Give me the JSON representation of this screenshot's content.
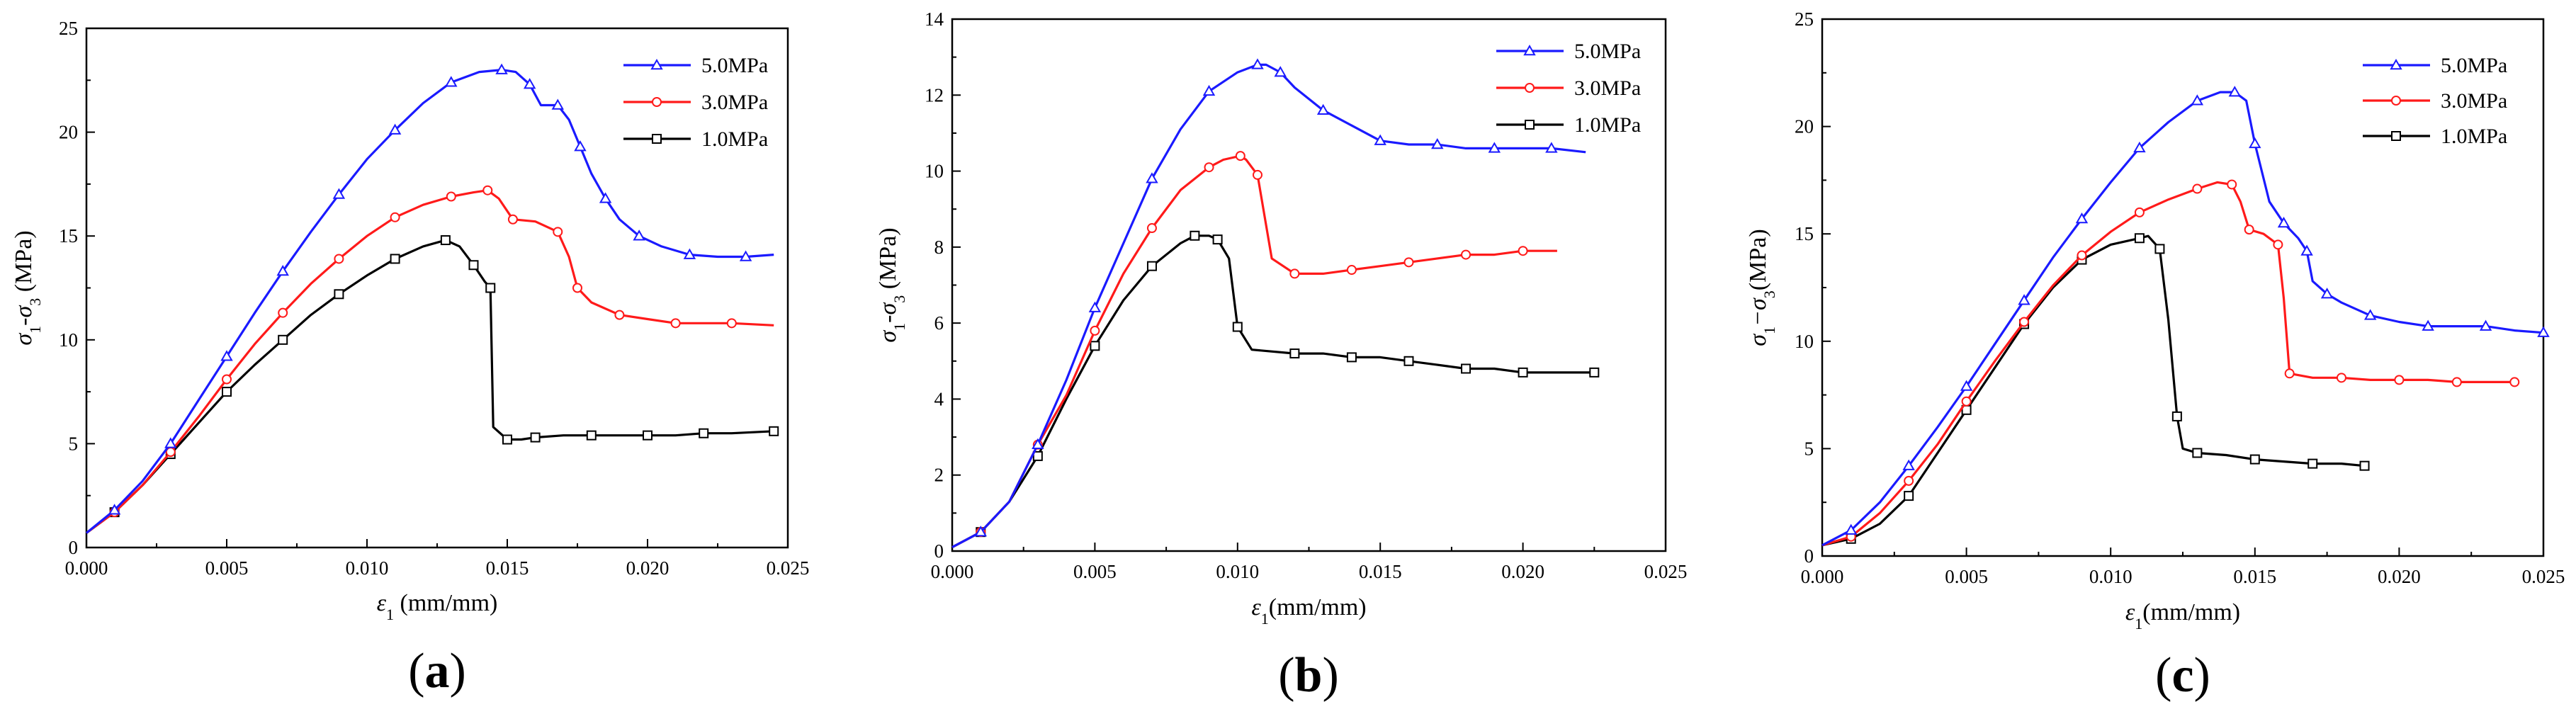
{
  "chart_data": [
    {
      "id": "a",
      "type": "line",
      "panel_label": "a",
      "xlabel_sym": "ε",
      "xlabel_sub": "1",
      "xlabel_tail": " (mm/mm)",
      "ylabel_parts": [
        "σ",
        "1",
        "-σ",
        "3",
        " (MPa)"
      ],
      "xlim": [
        0,
        0.025
      ],
      "ylim": [
        0,
        25
      ],
      "xticks": [
        0,
        0.005,
        0.01,
        0.015,
        0.02,
        0.025
      ],
      "xtick_labels": [
        "0.000",
        "0.005",
        "0.010",
        "0.015",
        "0.020",
        "0.025"
      ],
      "yticks": [
        0,
        5,
        10,
        15,
        20,
        25
      ],
      "ytick_labels": [
        "0",
        "5",
        "10",
        "15",
        "20",
        "25"
      ],
      "legend_position": "top-right",
      "series": [
        {
          "name": "5.0MPa",
          "color": "#1a1aff",
          "marker": "triangle",
          "x": [
            0,
            0.001,
            0.002,
            0.003,
            0.004,
            0.005,
            0.006,
            0.007,
            0.008,
            0.009,
            0.01,
            0.011,
            0.012,
            0.013,
            0.014,
            0.0148,
            0.0153,
            0.0158,
            0.0162,
            0.0168,
            0.0172,
            0.0176,
            0.018,
            0.0185,
            0.019,
            0.0197,
            0.0205,
            0.0215,
            0.0225,
            0.0235,
            0.0245
          ],
          "y": [
            0.7,
            1.8,
            3.2,
            5.0,
            7.1,
            9.2,
            11.3,
            13.3,
            15.2,
            17.0,
            18.7,
            20.1,
            21.4,
            22.4,
            22.9,
            23.0,
            22.9,
            22.3,
            21.3,
            21.3,
            20.6,
            19.3,
            18.0,
            16.8,
            15.8,
            15.0,
            14.5,
            14.1,
            14.0,
            14.0,
            14.1
          ]
        },
        {
          "name": "3.0MPa",
          "color": "#ff1a1a",
          "marker": "circle",
          "x": [
            0,
            0.001,
            0.002,
            0.003,
            0.004,
            0.005,
            0.006,
            0.007,
            0.008,
            0.009,
            0.01,
            0.011,
            0.012,
            0.013,
            0.0138,
            0.0143,
            0.0147,
            0.0152,
            0.016,
            0.0168,
            0.0172,
            0.0175,
            0.018,
            0.019,
            0.02,
            0.021,
            0.022,
            0.023,
            0.0245
          ],
          "y": [
            0.7,
            1.7,
            3.0,
            4.6,
            6.3,
            8.1,
            9.8,
            11.3,
            12.7,
            13.9,
            15.0,
            15.9,
            16.5,
            16.9,
            17.1,
            17.2,
            16.8,
            15.8,
            15.7,
            15.2,
            14.0,
            12.5,
            11.8,
            11.2,
            11.0,
            10.8,
            10.8,
            10.8,
            10.7
          ]
        },
        {
          "name": "1.0MPa",
          "color": "#000000",
          "marker": "square",
          "x": [
            0,
            0.001,
            0.002,
            0.003,
            0.004,
            0.005,
            0.006,
            0.007,
            0.008,
            0.009,
            0.01,
            0.011,
            0.012,
            0.0128,
            0.0133,
            0.0138,
            0.0142,
            0.0144,
            0.0145,
            0.015,
            0.0155,
            0.016,
            0.017,
            0.018,
            0.019,
            0.02,
            0.021,
            0.022,
            0.023,
            0.0245
          ],
          "y": [
            0.7,
            1.7,
            3.0,
            4.5,
            6.0,
            7.5,
            8.8,
            10.0,
            11.2,
            12.2,
            13.1,
            13.9,
            14.5,
            14.8,
            14.5,
            13.6,
            12.8,
            12.5,
            5.8,
            5.2,
            5.2,
            5.3,
            5.4,
            5.4,
            5.4,
            5.4,
            5.4,
            5.5,
            5.5,
            5.6
          ]
        }
      ]
    },
    {
      "id": "b",
      "type": "line",
      "panel_label": "b",
      "xlabel_sym": "ε",
      "xlabel_sub": "1",
      "xlabel_tail": "(mm/mm)",
      "ylabel_parts": [
        "σ",
        "1",
        "-σ",
        "3",
        " (MPa)"
      ],
      "xlim": [
        0,
        0.025
      ],
      "ylim": [
        0,
        14
      ],
      "xticks": [
        0,
        0.005,
        0.01,
        0.015,
        0.02,
        0.025
      ],
      "xtick_labels": [
        "0.000",
        "0.005",
        "0.010",
        "0.015",
        "0.020",
        "0.025"
      ],
      "yticks": [
        0,
        2,
        4,
        6,
        8,
        10,
        12,
        14
      ],
      "ytick_labels": [
        "0",
        "2",
        "4",
        "6",
        "8",
        "10",
        "12",
        "14"
      ],
      "legend_position": "top-right",
      "series": [
        {
          "name": "5.0MPa",
          "color": "#1a1aff",
          "marker": "triangle",
          "x": [
            0,
            0.001,
            0.002,
            0.003,
            0.004,
            0.005,
            0.006,
            0.007,
            0.008,
            0.009,
            0.01,
            0.0107,
            0.011,
            0.0115,
            0.012,
            0.013,
            0.014,
            0.015,
            0.016,
            0.017,
            0.018,
            0.019,
            0.02,
            0.021,
            0.0222
          ],
          "y": [
            0.1,
            0.5,
            1.3,
            2.8,
            4.5,
            6.4,
            8.1,
            9.8,
            11.1,
            12.1,
            12.6,
            12.8,
            12.8,
            12.6,
            12.2,
            11.6,
            11.2,
            10.8,
            10.7,
            10.7,
            10.6,
            10.6,
            10.6,
            10.6,
            10.5
          ]
        },
        {
          "name": "3.0MPa",
          "color": "#ff1a1a",
          "marker": "circle",
          "x": [
            0,
            0.001,
            0.002,
            0.003,
            0.004,
            0.005,
            0.006,
            0.007,
            0.008,
            0.009,
            0.0095,
            0.0101,
            0.0103,
            0.0107,
            0.0112,
            0.012,
            0.013,
            0.014,
            0.015,
            0.016,
            0.017,
            0.018,
            0.019,
            0.02,
            0.0212
          ],
          "y": [
            0.1,
            0.5,
            1.3,
            2.8,
            4.1,
            5.8,
            7.3,
            8.5,
            9.5,
            10.1,
            10.3,
            10.4,
            10.3,
            9.9,
            7.7,
            7.3,
            7.3,
            7.4,
            7.5,
            7.6,
            7.7,
            7.8,
            7.8,
            7.9,
            7.9
          ]
        },
        {
          "name": "1.0MPa",
          "color": "#000000",
          "marker": "square",
          "x": [
            0,
            0.001,
            0.002,
            0.003,
            0.004,
            0.005,
            0.006,
            0.007,
            0.008,
            0.0085,
            0.009,
            0.0093,
            0.0097,
            0.01,
            0.0105,
            0.012,
            0.013,
            0.014,
            0.015,
            0.016,
            0.017,
            0.018,
            0.019,
            0.02,
            0.021,
            0.0225
          ],
          "y": [
            0.1,
            0.5,
            1.3,
            2.5,
            4.0,
            5.4,
            6.6,
            7.5,
            8.1,
            8.3,
            8.3,
            8.2,
            7.7,
            5.9,
            5.3,
            5.2,
            5.2,
            5.1,
            5.1,
            5.0,
            4.9,
            4.8,
            4.8,
            4.7,
            4.7,
            4.7
          ]
        }
      ]
    },
    {
      "id": "c",
      "type": "line",
      "panel_label": "c",
      "xlabel_sym": "ε",
      "xlabel_sub": "1",
      "xlabel_tail": "(mm/mm)",
      "ylabel_parts": [
        "σ",
        "1",
        "−σ",
        "3",
        "(MPa)"
      ],
      "xlim": [
        0,
        0.025
      ],
      "ylim": [
        0,
        25
      ],
      "xticks": [
        0,
        0.005,
        0.01,
        0.015,
        0.02,
        0.025
      ],
      "xtick_labels": [
        "0.000",
        "0.005",
        "0.010",
        "0.015",
        "0.020",
        "0.025"
      ],
      "yticks": [
        0,
        5,
        10,
        15,
        20,
        25
      ],
      "ytick_labels": [
        "0",
        "5",
        "10",
        "15",
        "20",
        "25"
      ],
      "legend_position": "top-right",
      "series": [
        {
          "name": "5.0MPa",
          "color": "#1a1aff",
          "marker": "triangle",
          "x": [
            0,
            0.001,
            0.002,
            0.003,
            0.004,
            0.005,
            0.006,
            0.007,
            0.008,
            0.009,
            0.01,
            0.011,
            0.012,
            0.013,
            0.0138,
            0.0143,
            0.0147,
            0.015,
            0.0155,
            0.016,
            0.0165,
            0.0168,
            0.017,
            0.0175,
            0.018,
            0.019,
            0.02,
            0.021,
            0.022,
            0.023,
            0.024,
            0.025
          ],
          "y": [
            0.5,
            1.2,
            2.5,
            4.2,
            6.0,
            7.9,
            9.9,
            11.9,
            13.9,
            15.7,
            17.4,
            19.0,
            20.2,
            21.2,
            21.6,
            21.6,
            21.2,
            19.2,
            16.5,
            15.5,
            14.8,
            14.2,
            12.8,
            12.2,
            11.8,
            11.2,
            10.9,
            10.7,
            10.7,
            10.7,
            10.5,
            10.4
          ]
        },
        {
          "name": "3.0MPa",
          "color": "#ff1a1a",
          "marker": "circle",
          "x": [
            0,
            0.001,
            0.002,
            0.003,
            0.004,
            0.005,
            0.006,
            0.007,
            0.008,
            0.009,
            0.01,
            0.011,
            0.012,
            0.013,
            0.0137,
            0.0142,
            0.0145,
            0.0148,
            0.0153,
            0.0158,
            0.016,
            0.0162,
            0.017,
            0.018,
            0.019,
            0.02,
            0.021,
            0.022,
            0.023,
            0.024
          ],
          "y": [
            0.5,
            0.9,
            2.0,
            3.5,
            5.2,
            7.2,
            9.1,
            10.9,
            12.6,
            14.0,
            15.1,
            16.0,
            16.6,
            17.1,
            17.4,
            17.3,
            16.5,
            15.2,
            15.0,
            14.5,
            12.0,
            8.5,
            8.3,
            8.3,
            8.2,
            8.2,
            8.2,
            8.1,
            8.1,
            8.1
          ]
        },
        {
          "name": "1.0MPa",
          "color": "#000000",
          "marker": "square",
          "x": [
            0,
            0.001,
            0.002,
            0.003,
            0.004,
            0.005,
            0.006,
            0.007,
            0.008,
            0.009,
            0.01,
            0.011,
            0.0113,
            0.0117,
            0.012,
            0.0123,
            0.0125,
            0.013,
            0.014,
            0.015,
            0.016,
            0.017,
            0.018,
            0.0188
          ],
          "y": [
            0.5,
            0.8,
            1.5,
            2.8,
            4.8,
            6.8,
            8.8,
            10.8,
            12.5,
            13.8,
            14.5,
            14.8,
            14.9,
            14.3,
            11.0,
            6.5,
            5.0,
            4.8,
            4.7,
            4.5,
            4.4,
            4.3,
            4.3,
            4.2
          ]
        }
      ]
    }
  ]
}
